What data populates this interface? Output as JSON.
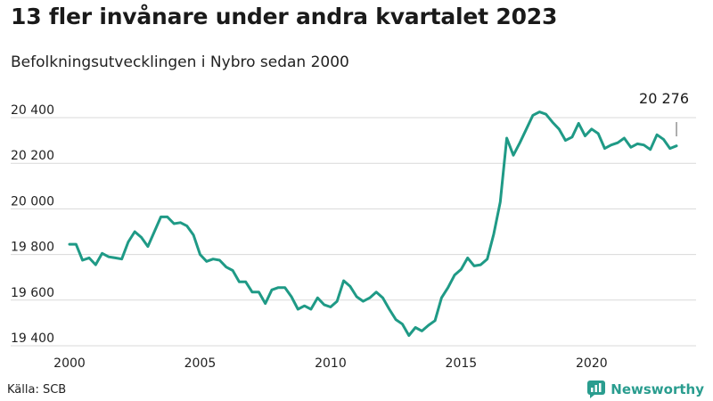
{
  "header": {
    "title": "13 fler invånare under andra kvartalet 2023",
    "subtitle": "Befolkningsutvecklingen i Nybro sedan 2000"
  },
  "footer": {
    "source": "Källa: SCB",
    "brand": "Newsworthy"
  },
  "colors": {
    "line": "#1f9a86",
    "grid": "#d9d9d9",
    "brand": "#2a9d8f"
  },
  "chart_data": {
    "type": "line",
    "title": "13 fler invånare under andra kvartalet 2023",
    "subtitle": "Befolkningsutvecklingen i Nybro sedan 2000",
    "xlabel": "",
    "ylabel": "",
    "xlim": [
      2000,
      2024
    ],
    "ylim": [
      19400,
      20450
    ],
    "x_ticks": [
      2000,
      2005,
      2010,
      2015,
      2020
    ],
    "x_tick_labels": [
      "2000",
      "2005",
      "2010",
      "2015",
      "2020"
    ],
    "y_ticks": [
      19400,
      19600,
      19800,
      20000,
      20200,
      20400
    ],
    "y_tick_labels": [
      "19 400",
      "19 600",
      "19 800",
      "20 000",
      "20 200",
      "20 400"
    ],
    "grid": true,
    "end_label": "20 276",
    "series": [
      {
        "x": [
          2000.0,
          2000.25,
          2000.5,
          2000.75,
          2001.0,
          2001.25,
          2001.5,
          2001.75,
          2002.0,
          2002.25,
          2002.5,
          2002.75,
          2003.0,
          2003.25,
          2003.5,
          2003.75,
          2004.0,
          2004.25,
          2004.5,
          2004.75,
          2005.0,
          2005.25,
          2005.5,
          2005.75,
          2006.0,
          2006.25,
          2006.5,
          2006.75,
          2007.0,
          2007.25,
          2007.5,
          2007.75,
          2008.0,
          2008.25,
          2008.5,
          2008.75,
          2009.0,
          2009.25,
          2009.5,
          2009.75,
          2010.0,
          2010.25,
          2010.5,
          2010.75,
          2011.0,
          2011.25,
          2011.5,
          2011.75,
          2012.0,
          2012.25,
          2012.5,
          2012.75,
          2013.0,
          2013.25,
          2013.5,
          2013.75,
          2014.0,
          2014.25,
          2014.5,
          2014.75,
          2015.0,
          2015.25,
          2015.5,
          2015.75,
          2016.0,
          2016.25,
          2016.5,
          2016.75,
          2017.0,
          2017.25,
          2017.5,
          2017.75,
          2018.0,
          2018.25,
          2018.5,
          2018.75,
          2019.0,
          2019.25,
          2019.5,
          2019.75,
          2020.0,
          2020.25,
          2020.5,
          2020.75,
          2021.0,
          2021.25,
          2021.5,
          2021.75,
          2022.0,
          2022.25,
          2022.5,
          2022.75,
          2023.0,
          2023.25
        ],
        "values": [
          19845,
          19845,
          19775,
          19785,
          19755,
          19805,
          19790,
          19785,
          19780,
          19855,
          19900,
          19875,
          19835,
          19900,
          19965,
          19965,
          19935,
          19940,
          19925,
          19885,
          19800,
          19770,
          19780,
          19775,
          19745,
          19730,
          19680,
          19680,
          19635,
          19635,
          19585,
          19645,
          19655,
          19655,
          19615,
          19560,
          19575,
          19560,
          19610,
          19580,
          19570,
          19595,
          19685,
          19660,
          19615,
          19595,
          19610,
          19635,
          19610,
          19560,
          19515,
          19495,
          19445,
          19480,
          19465,
          19490,
          19510,
          19610,
          19655,
          19710,
          19735,
          19785,
          19750,
          19755,
          19780,
          19890,
          20030,
          20310,
          20235,
          20290,
          20350,
          20410,
          20425,
          20415,
          20380,
          20350,
          20300,
          20315,
          20375,
          20320,
          20350,
          20330,
          20265,
          20280,
          20290,
          20310,
          20270,
          20285,
          20280,
          20260,
          20325,
          20305,
          20265,
          20276
        ]
      }
    ]
  }
}
